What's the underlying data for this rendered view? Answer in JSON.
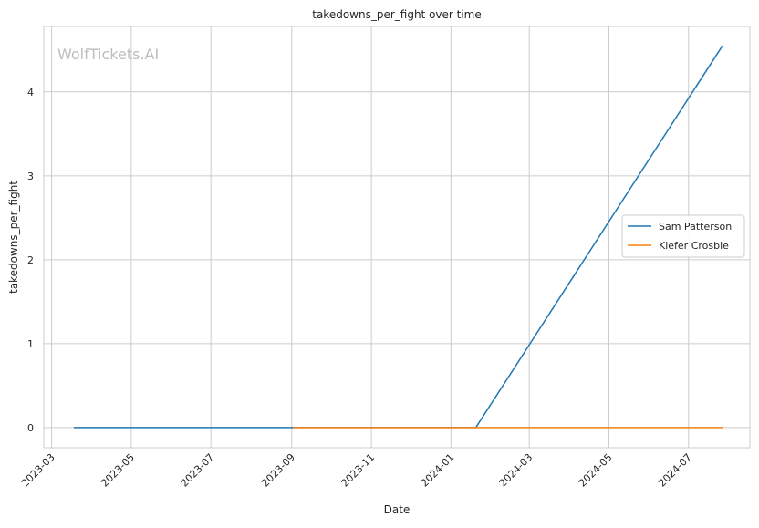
{
  "chart_data": {
    "type": "line",
    "title": "takedowns_per_fight over time",
    "xlabel": "Date",
    "ylabel": "takedowns_per_fight",
    "watermark": "WolfTickets.AI",
    "x_ticks": [
      "2023-03",
      "2023-05",
      "2023-07",
      "2023-09",
      "2023-11",
      "2024-01",
      "2024-03",
      "2024-05",
      "2024-07"
    ],
    "y_ticks": [
      0,
      1,
      2,
      3,
      4
    ],
    "xlim": [
      "2023-02-23",
      "2024-08-17"
    ],
    "ylim": [
      -0.24,
      4.78
    ],
    "grid": true,
    "legend_position": "center-right",
    "series": [
      {
        "name": "Sam Patterson",
        "color": "#1f77b4",
        "points": [
          {
            "x": "2023-03-18",
            "y": 0
          },
          {
            "x": "2024-01-20",
            "y": 0
          },
          {
            "x": "2024-07-27",
            "y": 4.55
          }
        ]
      },
      {
        "name": "Kiefer Crosbie",
        "color": "#ff7f0e",
        "points": [
          {
            "x": "2023-09-02",
            "y": 0
          },
          {
            "x": "2024-07-27",
            "y": 0
          }
        ]
      }
    ]
  }
}
